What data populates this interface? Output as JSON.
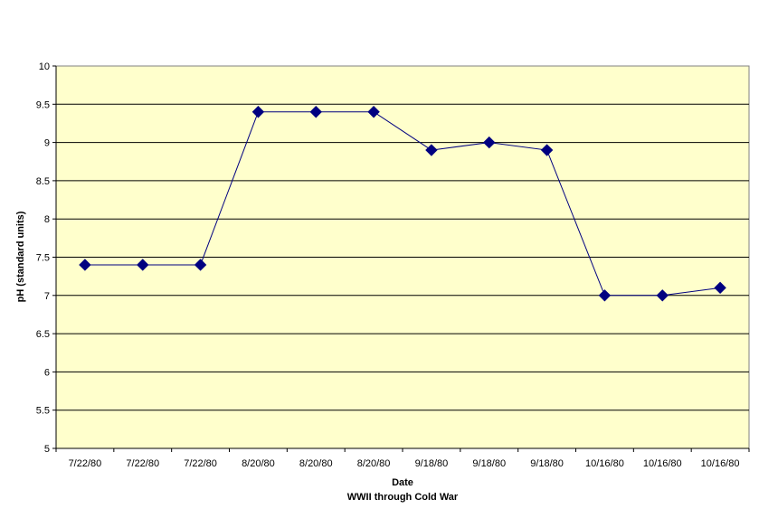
{
  "chart_data": {
    "type": "line",
    "categories": [
      "7/22/80",
      "7/22/80",
      "7/22/80",
      "8/20/80",
      "8/20/80",
      "8/20/80",
      "9/18/80",
      "9/18/80",
      "9/18/80",
      "10/16/80",
      "10/16/80",
      "10/16/80"
    ],
    "series": [
      {
        "values": [
          7.4,
          7.4,
          7.4,
          9.4,
          9.4,
          9.4,
          8.9,
          9.0,
          8.9,
          7.0,
          7.0,
          7.1
        ],
        "color": "#000080",
        "marker": "diamond"
      }
    ],
    "title": "",
    "xlabel": "Date",
    "xlabel_sub": "WWII through Cold War",
    "ylabel": "pH (standard units)",
    "ylim": [
      5,
      10
    ],
    "yticks": [
      "5",
      "5.5",
      "6",
      "6.5",
      "7",
      "7.5",
      "8",
      "8.5",
      "9",
      "9.5",
      "10"
    ],
    "grid": true,
    "legend": "none",
    "plot_background": "#FFFFCC",
    "line_color": "#000080"
  }
}
